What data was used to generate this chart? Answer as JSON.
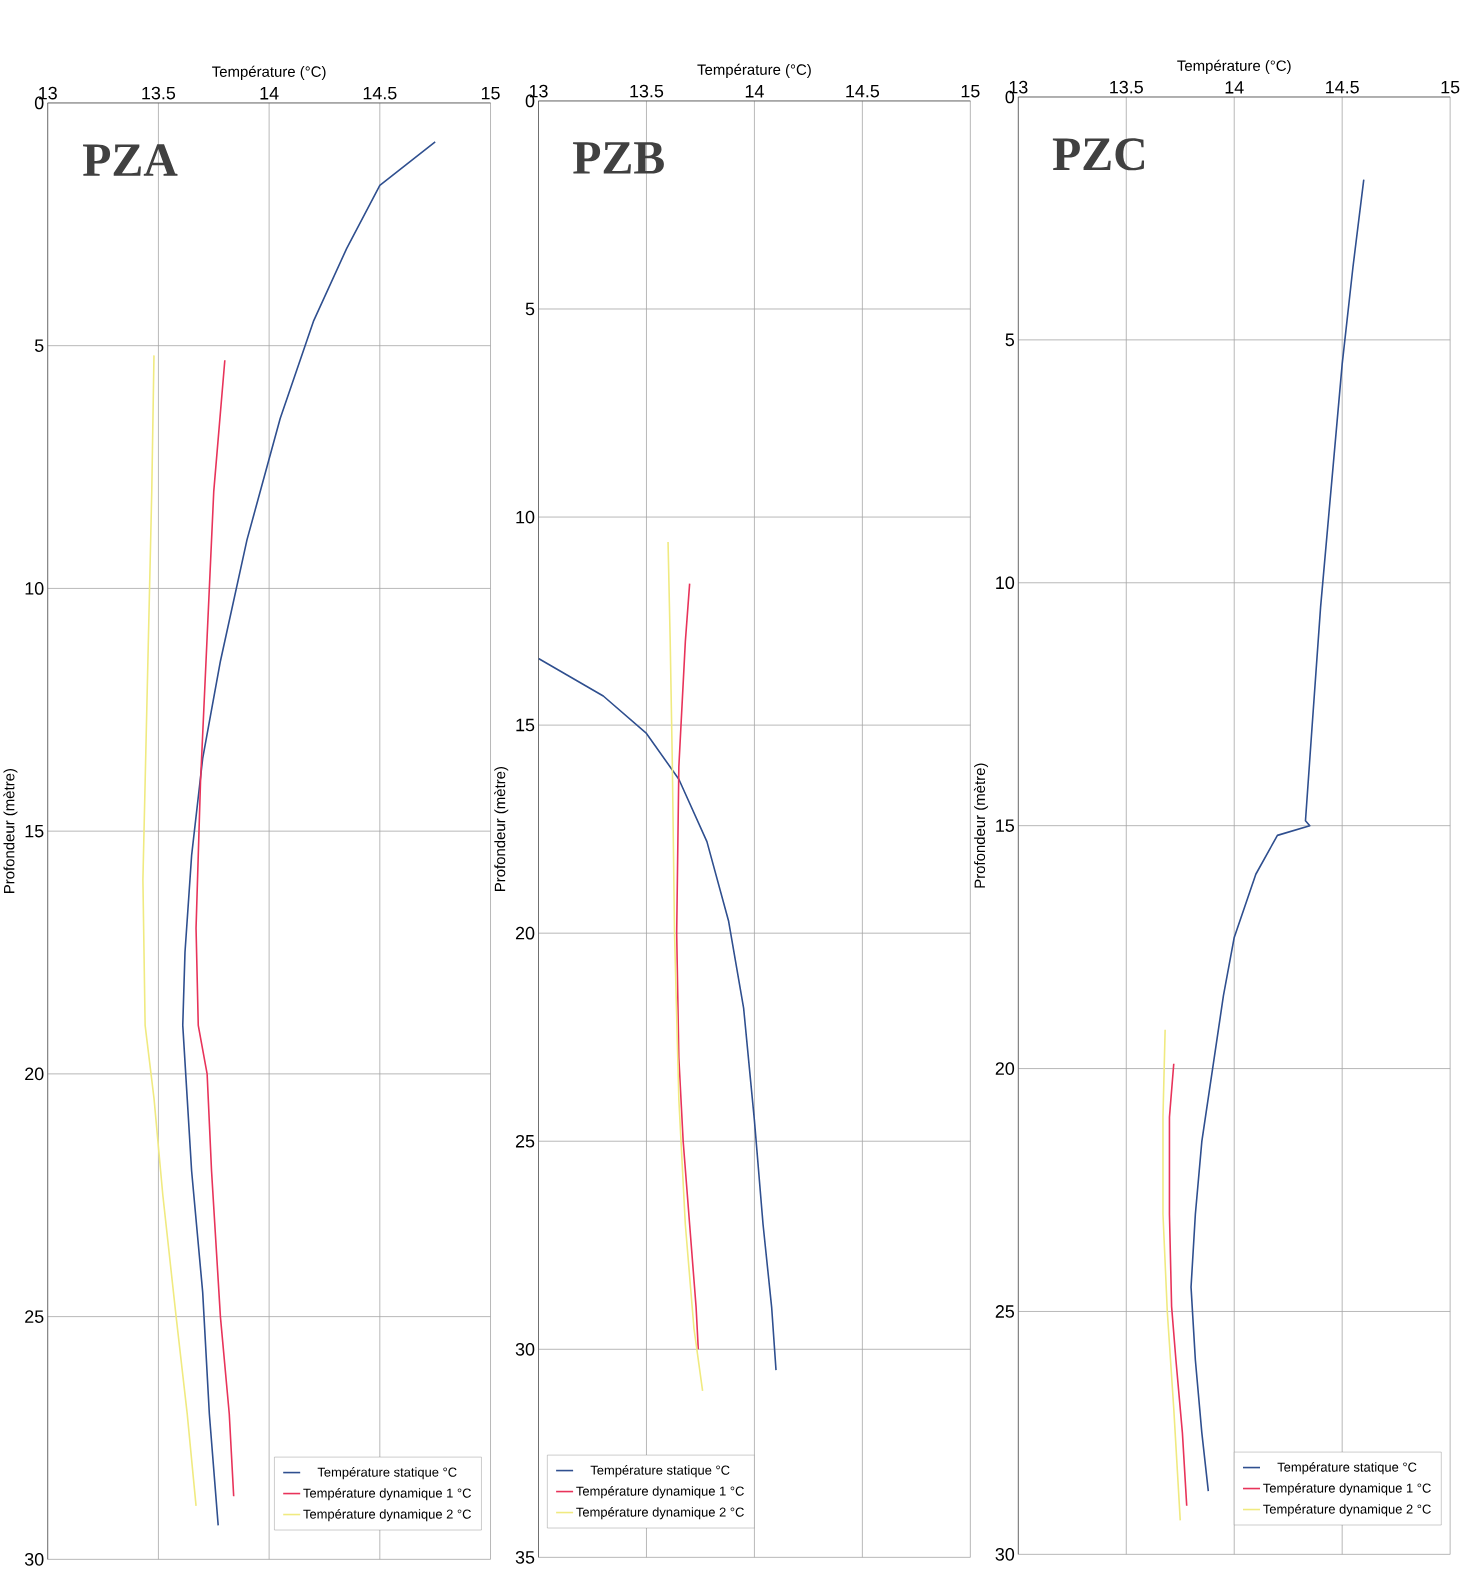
{
  "chart_data": [
    {
      "type": "line",
      "title": "PZA",
      "xlabel": "Température (°C)",
      "ylabel": "Profondeur (mètre)",
      "xlim": [
        13,
        15
      ],
      "ylim": [
        30,
        0
      ],
      "xticks": [
        13,
        13.5,
        14,
        14.5,
        15
      ],
      "yticks": [
        0,
        5,
        10,
        15,
        20,
        25,
        30
      ],
      "grid": true,
      "legend": "bottom right",
      "series": [
        {
          "name": "Température statique °C",
          "color": "#2f4f8f",
          "x": [
            14.75,
            14.5,
            14.35,
            14.2,
            14.05,
            13.9,
            13.78,
            13.7,
            13.65,
            13.62,
            13.61,
            13.63,
            13.65,
            13.7,
            13.73,
            13.77
          ],
          "values": [
            0.8,
            1.7,
            3,
            4.5,
            6.5,
            9,
            11.5,
            13.5,
            15.5,
            17.5,
            19,
            20.5,
            22,
            24.5,
            27,
            29.3
          ]
        },
        {
          "name": "Température dynamique 1 °C",
          "color": "#e8335a",
          "x": [
            13.8,
            13.75,
            13.72,
            13.69,
            13.67,
            13.68,
            13.72,
            13.74,
            13.78,
            13.82,
            13.84
          ],
          "values": [
            5.3,
            8,
            11,
            14,
            17,
            19,
            20,
            22,
            25,
            27,
            28.7
          ]
        },
        {
          "name": "Température dynamique 2 °C",
          "color": "#f0ea80",
          "x": [
            13.48,
            13.47,
            13.45,
            13.43,
            13.44,
            13.48,
            13.52,
            13.58,
            13.63,
            13.67
          ],
          "values": [
            5.2,
            8,
            12,
            16,
            19,
            20.5,
            22.5,
            25,
            27,
            28.9
          ]
        }
      ]
    },
    {
      "type": "line",
      "title": "PZB",
      "xlabel": "Température (°C)",
      "ylabel": "Profondeur (mètre)",
      "xlim": [
        13,
        15
      ],
      "ylim": [
        35,
        0
      ],
      "xticks": [
        13,
        13.5,
        14,
        14.5,
        15
      ],
      "yticks": [
        0,
        5,
        10,
        15,
        20,
        25,
        30,
        35
      ],
      "grid": true,
      "legend": "bottom left",
      "series": [
        {
          "name": "Température statique °C",
          "color": "#2f4f8f",
          "x": [
            13.0,
            13.3,
            13.5,
            13.65,
            13.78,
            13.88,
            13.95,
            14.0,
            14.04,
            14.08,
            14.1
          ],
          "values": [
            13.4,
            14.3,
            15.2,
            16.3,
            17.8,
            19.7,
            21.8,
            24.5,
            27,
            29,
            30.5
          ]
        },
        {
          "name": "Température dynamique 1 °C",
          "color": "#e8335a",
          "x": [
            13.7,
            13.68,
            13.65,
            13.64,
            13.65,
            13.67,
            13.7,
            13.73,
            13.74
          ],
          "values": [
            11.6,
            13,
            16,
            20,
            23,
            25,
            27,
            29,
            30
          ]
        },
        {
          "name": "Température dynamique 2 °C",
          "color": "#f0ea80",
          "x": [
            13.6,
            13.61,
            13.62,
            13.63,
            13.65,
            13.68,
            13.72,
            13.76
          ],
          "values": [
            10.6,
            13,
            16,
            20,
            24,
            27,
            29.5,
            31
          ]
        }
      ]
    },
    {
      "type": "line",
      "title": "PZC",
      "xlabel": "Température (°C)",
      "ylabel": "Profondeur (mètre)",
      "xlim": [
        13,
        15
      ],
      "ylim": [
        30,
        0
      ],
      "xticks": [
        13,
        13.5,
        14,
        14.5,
        15
      ],
      "yticks": [
        0,
        5,
        10,
        15,
        20,
        25,
        30
      ],
      "grid": true,
      "legend": "bottom right",
      "series": [
        {
          "name": "Température statique °C",
          "color": "#2f4f8f",
          "x": [
            14.6,
            14.55,
            14.5,
            14.45,
            14.4,
            14.36,
            14.33,
            14.35,
            14.2,
            14.1,
            14.0,
            13.95,
            13.9,
            13.85,
            13.82,
            13.8,
            13.82,
            13.85,
            13.88
          ],
          "values": [
            1.7,
            3.5,
            5.5,
            8,
            10.5,
            13,
            14.9,
            15,
            15.2,
            16,
            17.3,
            18.5,
            20,
            21.5,
            23,
            24.5,
            26,
            27.5,
            28.7
          ]
        },
        {
          "name": "Température dynamique 1 °C",
          "color": "#e8335a",
          "x": [
            13.72,
            13.7,
            13.7,
            13.71,
            13.73,
            13.76,
            13.78
          ],
          "values": [
            19.9,
            21,
            23,
            24.9,
            26,
            27.5,
            29
          ]
        },
        {
          "name": "Température dynamique 2 °C",
          "color": "#f0ea80",
          "x": [
            13.68,
            13.67,
            13.67,
            13.69,
            13.72,
            13.75
          ],
          "values": [
            19.2,
            21,
            23,
            25,
            27,
            29.3
          ]
        }
      ]
    }
  ]
}
